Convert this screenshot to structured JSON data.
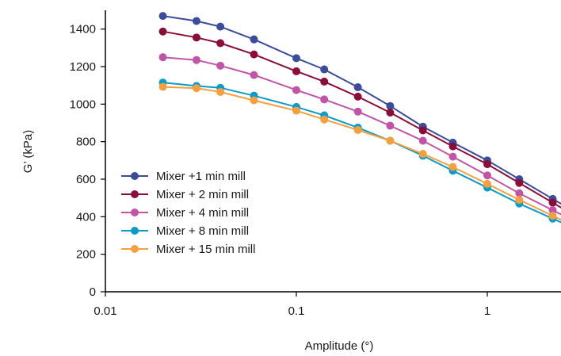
{
  "chart_data": {
    "type": "line",
    "title": "",
    "xlabel": "Amplitude (°)",
    "ylabel": "G’ (kPa)",
    "x_scale": "log",
    "xlim": [
      0.01,
      2.3
    ],
    "ylim": [
      0,
      1500
    ],
    "x_ticks": [
      {
        "value": 0.01,
        "label": "0.01"
      },
      {
        "value": 0.1,
        "label": "0.1"
      },
      {
        "value": 1,
        "label": "1"
      }
    ],
    "y_ticks": [
      {
        "value": 0,
        "label": "0"
      },
      {
        "value": 200,
        "label": "200"
      },
      {
        "value": 400,
        "label": "400"
      },
      {
        "value": 600,
        "label": "600"
      },
      {
        "value": 800,
        "label": "800"
      },
      {
        "value": 1000,
        "label": "1000"
      },
      {
        "value": 1200,
        "label": "1200"
      },
      {
        "value": 1400,
        "label": "1400"
      }
    ],
    "grid": false,
    "legend_position": "lower-left",
    "x": [
      0.02,
      0.03,
      0.04,
      0.06,
      0.1,
      0.14,
      0.21,
      0.31,
      0.46,
      0.66,
      1.0,
      1.47,
      2.2
    ],
    "series": [
      {
        "name": "Mixer +1 min mill",
        "color": "#3b4c9b",
        "values": [
          1470,
          1443,
          1413,
          1345,
          1245,
          1185,
          1090,
          990,
          880,
          795,
          700,
          600,
          495
        ]
      },
      {
        "name": "Mixer + 2 min mill",
        "color": "#8b0d3a",
        "values": [
          1387,
          1355,
          1325,
          1265,
          1175,
          1120,
          1040,
          955,
          860,
          775,
          680,
          580,
          475
        ]
      },
      {
        "name": "Mixer + 4 min mill",
        "color": "#c055a8",
        "values": [
          1250,
          1235,
          1205,
          1155,
          1075,
          1025,
          960,
          885,
          805,
          720,
          620,
          525,
          435
        ]
      },
      {
        "name": "Mixer + 8 min mill",
        "color": "#0e9bc8",
        "values": [
          1115,
          1097,
          1087,
          1045,
          985,
          940,
          875,
          805,
          725,
          645,
          555,
          470,
          390
        ]
      },
      {
        "name": "Mixer + 15 min mill",
        "color": "#f5a040",
        "values": [
          1092,
          1085,
          1065,
          1020,
          965,
          918,
          862,
          805,
          735,
          665,
          575,
          490,
          405
        ]
      }
    ]
  }
}
